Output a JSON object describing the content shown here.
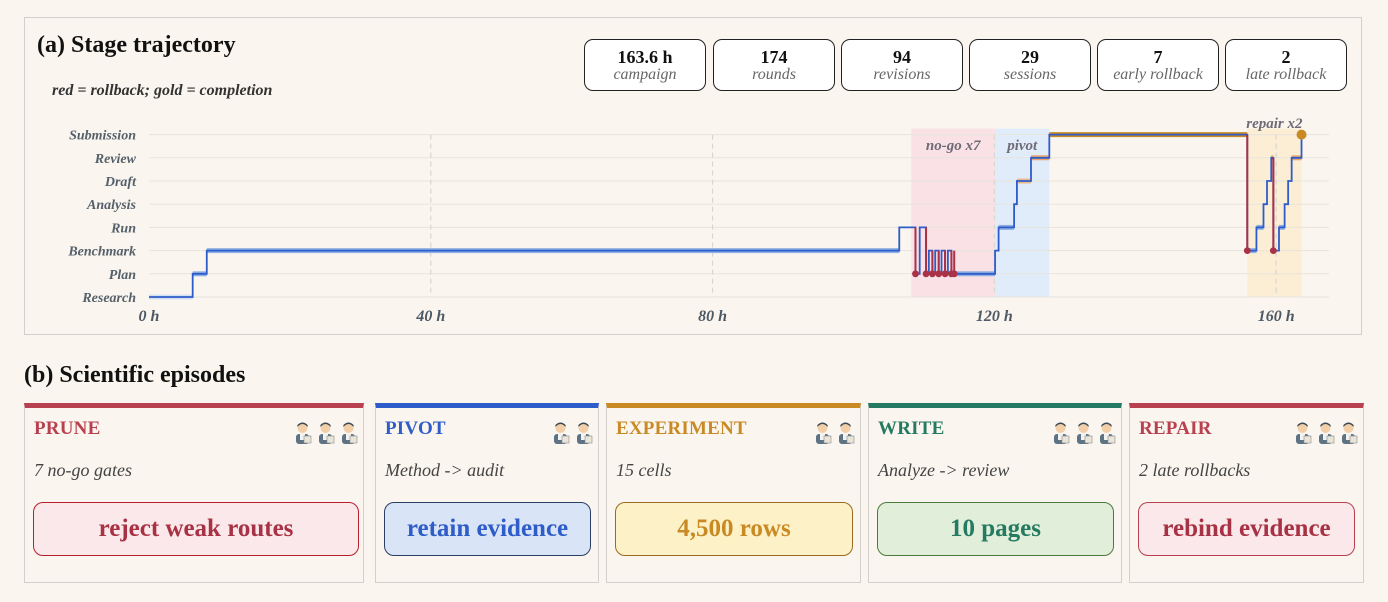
{
  "panel_a": {
    "title": "(a) Stage trajectory",
    "legend_note": "red = rollback; gold = completion",
    "stats": [
      {
        "value": "163.6 h",
        "label": "campaign"
      },
      {
        "value": "174",
        "label": "rounds"
      },
      {
        "value": "94",
        "label": "revisions"
      },
      {
        "value": "29",
        "label": "sessions"
      },
      {
        "value": "7",
        "label": "early rollback"
      },
      {
        "value": "2",
        "label": "late rollback"
      }
    ],
    "stages": [
      "Research",
      "Plan",
      "Benchmark",
      "Run",
      "Analysis",
      "Draft",
      "Review",
      "Submission"
    ],
    "x_ticks": [
      {
        "value": 0,
        "label": "0 h"
      },
      {
        "value": 40,
        "label": "40 h"
      },
      {
        "value": 80,
        "label": "80 h"
      },
      {
        "value": 120,
        "label": "120 h"
      },
      {
        "value": 160,
        "label": "160 h"
      }
    ],
    "regions": [
      {
        "label": "no-go x7",
        "start": 108.2,
        "end": 120.1,
        "color": "#f9e1e6"
      },
      {
        "label": "pivot",
        "start": 120.1,
        "end": 127.8,
        "color": "#e1ecfa"
      },
      {
        "label": "repair x2",
        "start": 155.9,
        "end": 163.6,
        "color": "#fbeed4"
      }
    ],
    "colors": {
      "trajectory": "#2e5cc8",
      "level_segment": "#8fb0e4",
      "rollback": "#a93246",
      "completion": "#c98a24",
      "draft_segment": "#e8b98c",
      "review_segment": "#e8a56f"
    }
  },
  "panel_b": {
    "title": "(b) Scientific episodes",
    "episodes": [
      {
        "title": "PRUNE",
        "subtitle": "7 no-go gates",
        "outcome": "reject weak routes",
        "avatars": 3,
        "accent": "#b8404f",
        "pill_bg": "#fbe8ea",
        "pill_border": "#b8202e",
        "pill_text": "#a83245"
      },
      {
        "title": "PIVOT",
        "subtitle": "Method -> audit",
        "outcome": "retain evidence",
        "avatars": 2,
        "accent": "#2e5cc8",
        "pill_bg": "#d9e4f7",
        "pill_border": "#2a3f66",
        "pill_text": "#2e5cc8"
      },
      {
        "title": "EXPERIMENT",
        "subtitle": "15 cells",
        "outcome": "4,500 rows",
        "avatars": 2,
        "accent": "#c98a24",
        "pill_bg": "#fdf1c7",
        "pill_border": "#9a6b1e",
        "pill_text": "#c98a24"
      },
      {
        "title": "WRITE",
        "subtitle": "Analyze -> review",
        "outcome": "10 pages",
        "avatars": 3,
        "accent": "#257a62",
        "pill_bg": "#e1efda",
        "pill_border": "#4d7a3c",
        "pill_text": "#257a62"
      },
      {
        "title": "REPAIR",
        "subtitle": "2 late rollbacks",
        "outcome": "rebind evidence",
        "avatars": 3,
        "accent": "#b8404f",
        "pill_bg": "#fbe8ea",
        "pill_border": "#b8404f",
        "pill_text": "#a83245"
      }
    ]
  }
}
